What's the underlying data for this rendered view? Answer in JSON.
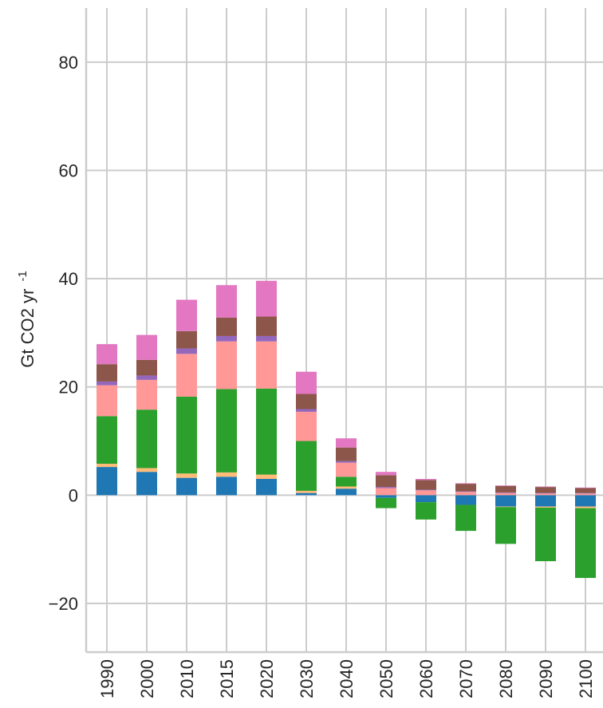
{
  "chart_data": {
    "type": "bar",
    "stacked": true,
    "ylabel": "Gt CO2 yr",
    "ylabel_superscript": "-1",
    "xlabel": "",
    "ylim": [
      -29,
      90
    ],
    "yticks": [
      -20,
      0,
      20,
      40,
      60,
      80
    ],
    "ytick_labels": [
      "−20",
      "0",
      "20",
      "40",
      "60",
      "80"
    ],
    "grid": true,
    "categories": [
      "1990",
      "2000",
      "2010",
      "2015",
      "2020",
      "2030",
      "2040",
      "2050",
      "2060",
      "2070",
      "2080",
      "2090",
      "2100"
    ],
    "series": [
      {
        "color": "#1f77b4",
        "values": [
          5.2,
          4.3,
          3.2,
          3.4,
          3.0,
          0.4,
          1.2,
          -0.5,
          -1.3,
          -1.8,
          -2.1,
          -2.1,
          -2.1
        ]
      },
      {
        "color": "#ffbb78",
        "values": [
          0.6,
          0.7,
          0.8,
          0.8,
          0.8,
          0.4,
          0.4,
          0.0,
          0.0,
          0.0,
          -0.1,
          -0.2,
          -0.3
        ]
      },
      {
        "color": "#2ca02c",
        "values": [
          8.8,
          10.8,
          14.2,
          15.4,
          15.9,
          9.2,
          1.8,
          -1.9,
          -3.2,
          -4.8,
          -6.8,
          -9.9,
          -12.9
        ]
      },
      {
        "color": "#ff9896",
        "values": [
          5.7,
          5.5,
          7.9,
          8.8,
          8.7,
          5.4,
          2.6,
          1.3,
          0.9,
          0.6,
          0.4,
          0.3,
          0.3
        ]
      },
      {
        "color": "#9467bd",
        "values": [
          0.7,
          0.8,
          1.0,
          1.0,
          1.0,
          0.5,
          0.3,
          0.2,
          0.1,
          0.1,
          0.1,
          0.1,
          0.1
        ]
      },
      {
        "color": "#8c564b",
        "values": [
          3.2,
          2.9,
          3.2,
          3.4,
          3.6,
          2.8,
          2.5,
          2.2,
          1.8,
          1.4,
          1.2,
          1.1,
          0.9
        ]
      },
      {
        "color": "#e377c2",
        "values": [
          3.7,
          4.6,
          5.8,
          6.0,
          6.6,
          4.1,
          1.7,
          0.6,
          0.2,
          0.1,
          0.1,
          0.1,
          0.1
        ]
      }
    ]
  }
}
